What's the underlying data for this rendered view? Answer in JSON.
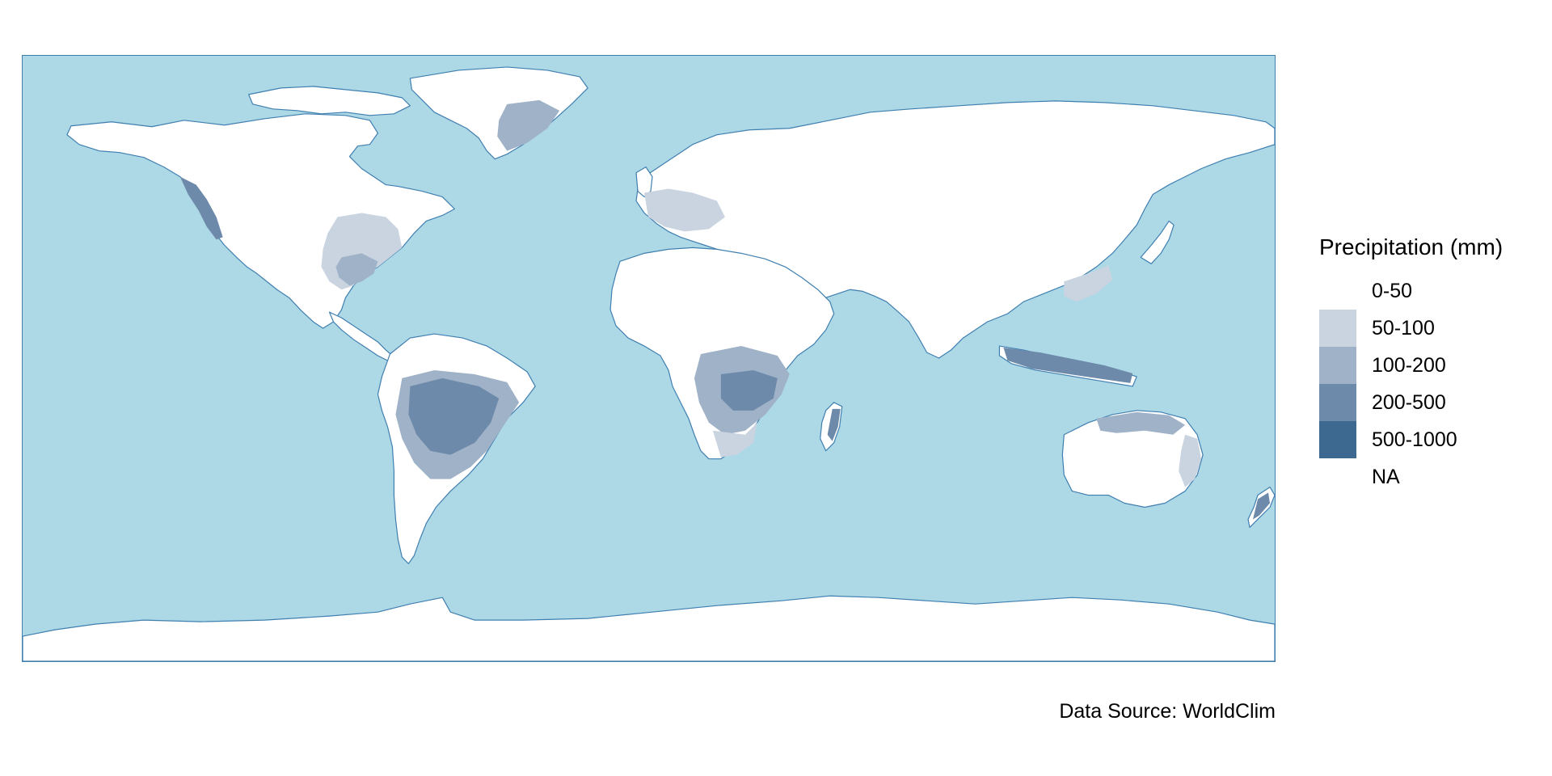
{
  "map": {
    "ocean_color": "#add8e6",
    "land_color": "#ffffff",
    "coast_color": "#3f7fb0"
  },
  "legend": {
    "title": "Precipitation (mm)",
    "items": [
      {
        "label": "0-50",
        "color": "#ffffff"
      },
      {
        "label": "50-100",
        "color": "#c9d4e0"
      },
      {
        "label": "100-200",
        "color": "#9fb2c7"
      },
      {
        "label": "200-500",
        "color": "#6d8aab"
      },
      {
        "label": "500-1000",
        "color": "#3d6890"
      },
      {
        "label": "NA",
        "color": "#ffffff"
      }
    ]
  },
  "caption": "Data Source: WorldClim"
}
